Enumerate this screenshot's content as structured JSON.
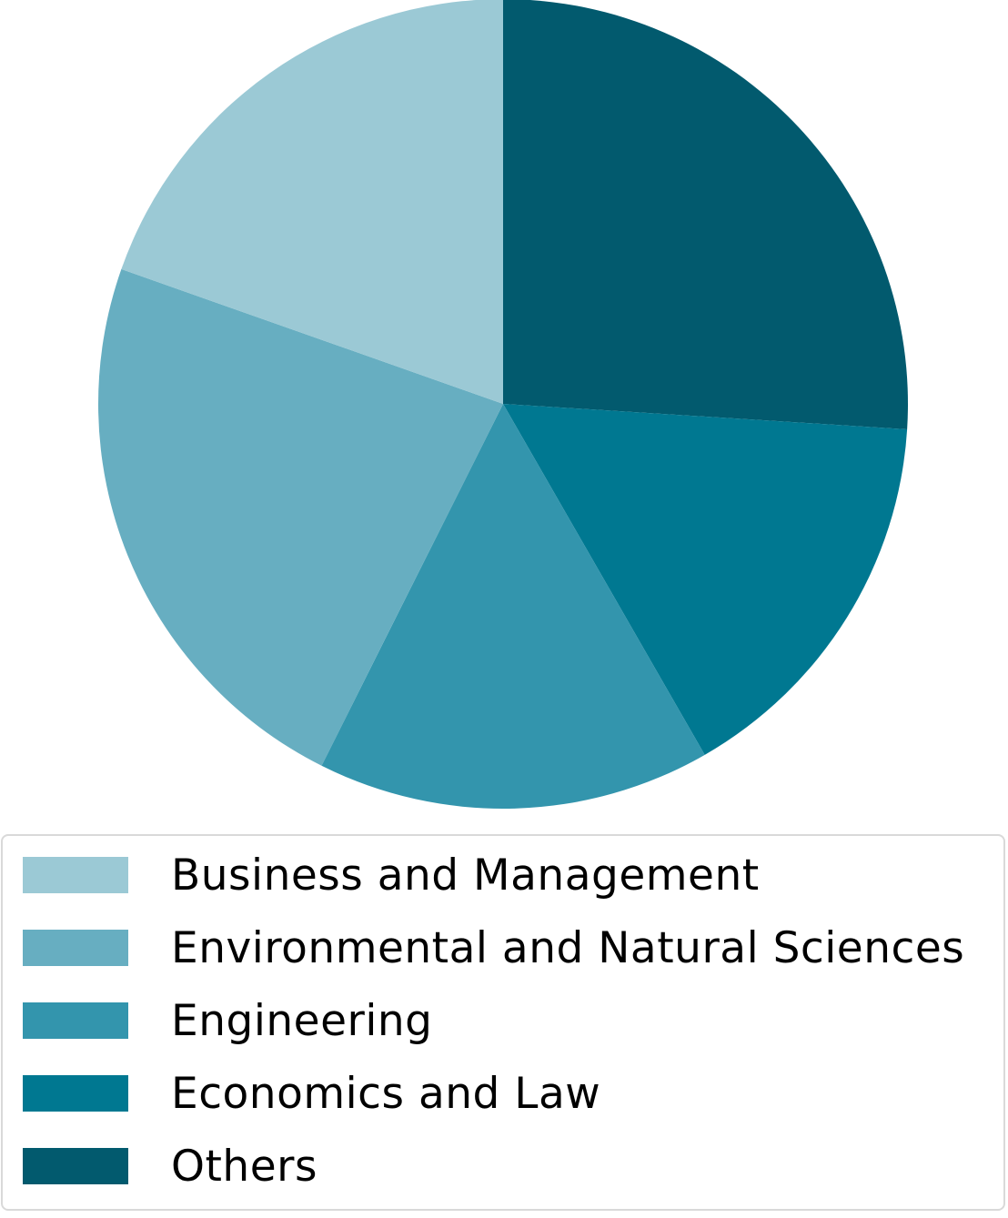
{
  "chart_data": {
    "type": "pie",
    "title": "",
    "start_angle_deg": 0,
    "direction": "clockwise",
    "slices": [
      {
        "label": "Others",
        "value": 26.0,
        "color": "#025a6e"
      },
      {
        "label": "Economics and Law",
        "value": 15.7,
        "color": "#007891"
      },
      {
        "label": "Engineering",
        "value": 15.7,
        "color": "#3395ad"
      },
      {
        "label": "Environmental and Natural Sciences",
        "value": 23.0,
        "color": "#67aec1"
      },
      {
        "label": "Business and Management",
        "value": 19.6,
        "color": "#9bc9d5"
      }
    ],
    "legend": {
      "position": "bottom",
      "entries": [
        {
          "label": "Business and Management",
          "color": "#9bc9d5"
        },
        {
          "label": "Environmental and Natural Sciences",
          "color": "#67aec1"
        },
        {
          "label": "Engineering",
          "color": "#3395ad"
        },
        {
          "label": "Economics and Law",
          "color": "#007891"
        },
        {
          "label": "Others",
          "color": "#025a6e"
        }
      ]
    }
  }
}
